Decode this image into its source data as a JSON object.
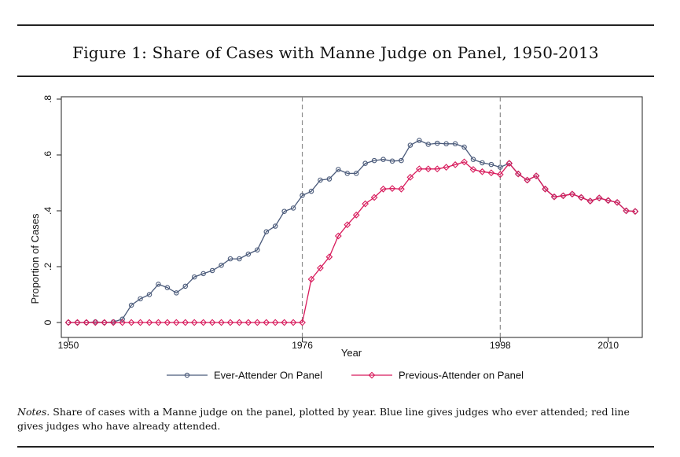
{
  "figure": {
    "title": "Figure 1: Share of Cases with Manne Judge on Panel, 1950-2013",
    "notes_label": "Notes.",
    "notes_text": " Share of cases with a Manne judge on the panel, plotted by year. Blue line gives judges who ever attended; red line gives judges who have already attended."
  },
  "chart_data": {
    "type": "line",
    "title": "",
    "xlabel": "Year",
    "ylabel": "Proportion of Cases",
    "xlim": [
      1950,
      2013
    ],
    "ylim": [
      0,
      0.8
    ],
    "xticks": [
      1950,
      1976,
      1998,
      2010
    ],
    "yticks": [
      0,
      0.2,
      0.4,
      0.6,
      0.8
    ],
    "ytick_labels": [
      "0",
      ".2",
      ".4",
      ".6",
      ".8"
    ],
    "vlines": [
      1976,
      1998
    ],
    "grid": false,
    "legend_position": "bottom",
    "series": [
      {
        "name": "Ever-Attender On Panel",
        "color": "#4a5a7a",
        "marker": "circle",
        "x": [
          1950,
          1951,
          1952,
          1953,
          1954,
          1955,
          1956,
          1957,
          1958,
          1959,
          1960,
          1961,
          1962,
          1963,
          1964,
          1965,
          1966,
          1967,
          1968,
          1969,
          1970,
          1971,
          1972,
          1973,
          1974,
          1975,
          1976,
          1977,
          1978,
          1979,
          1980,
          1981,
          1982,
          1983,
          1984,
          1985,
          1986,
          1987,
          1988,
          1989,
          1990,
          1991,
          1992,
          1993,
          1994,
          1995,
          1996,
          1997,
          1998,
          1999,
          2000,
          2001,
          2002,
          2003,
          2004,
          2005,
          2006,
          2007,
          2008,
          2009,
          2010,
          2011,
          2012,
          2013
        ],
        "values": [
          0,
          0,
          0,
          0.002,
          0,
          0.002,
          0.012,
          0.062,
          0.085,
          0.1,
          0.137,
          0.125,
          0.106,
          0.13,
          0.163,
          0.175,
          0.186,
          0.205,
          0.228,
          0.228,
          0.245,
          0.26,
          0.325,
          0.345,
          0.398,
          0.41,
          0.455,
          0.47,
          0.51,
          0.514,
          0.548,
          0.534,
          0.534,
          0.57,
          0.58,
          0.584,
          0.578,
          0.58,
          0.635,
          0.652,
          0.638,
          0.642,
          0.64,
          0.64,
          0.628,
          0.584,
          0.572,
          0.566,
          0.556,
          0.57,
          0.532,
          0.51,
          0.525,
          0.478,
          0.45,
          0.454,
          0.46,
          0.448,
          0.435,
          0.446,
          0.437,
          0.43,
          0.4,
          0.398
        ]
      },
      {
        "name": "Previous-Attender on Panel",
        "color": "#d81b5c",
        "marker": "diamond",
        "x": [
          1950,
          1951,
          1952,
          1953,
          1954,
          1955,
          1956,
          1957,
          1958,
          1959,
          1960,
          1961,
          1962,
          1963,
          1964,
          1965,
          1966,
          1967,
          1968,
          1969,
          1970,
          1971,
          1972,
          1973,
          1974,
          1975,
          1976,
          1977,
          1978,
          1979,
          1980,
          1981,
          1982,
          1983,
          1984,
          1985,
          1986,
          1987,
          1988,
          1989,
          1990,
          1991,
          1992,
          1993,
          1994,
          1995,
          1996,
          1997,
          1998,
          1999,
          2000,
          2001,
          2002,
          2003,
          2004,
          2005,
          2006,
          2007,
          2008,
          2009,
          2010,
          2011,
          2012,
          2013
        ],
        "values": [
          0,
          0,
          0,
          0,
          0,
          0,
          0,
          0,
          0,
          0,
          0,
          0,
          0,
          0,
          0,
          0,
          0,
          0,
          0,
          0,
          0,
          0,
          0,
          0,
          0,
          0,
          0,
          0.155,
          0.195,
          0.235,
          0.31,
          0.35,
          0.385,
          0.425,
          0.448,
          0.478,
          0.48,
          0.478,
          0.52,
          0.55,
          0.55,
          0.55,
          0.556,
          0.565,
          0.575,
          0.548,
          0.54,
          0.536,
          0.53,
          0.57,
          0.532,
          0.51,
          0.525,
          0.478,
          0.45,
          0.454,
          0.46,
          0.448,
          0.435,
          0.446,
          0.437,
          0.43,
          0.4,
          0.398
        ]
      }
    ]
  }
}
